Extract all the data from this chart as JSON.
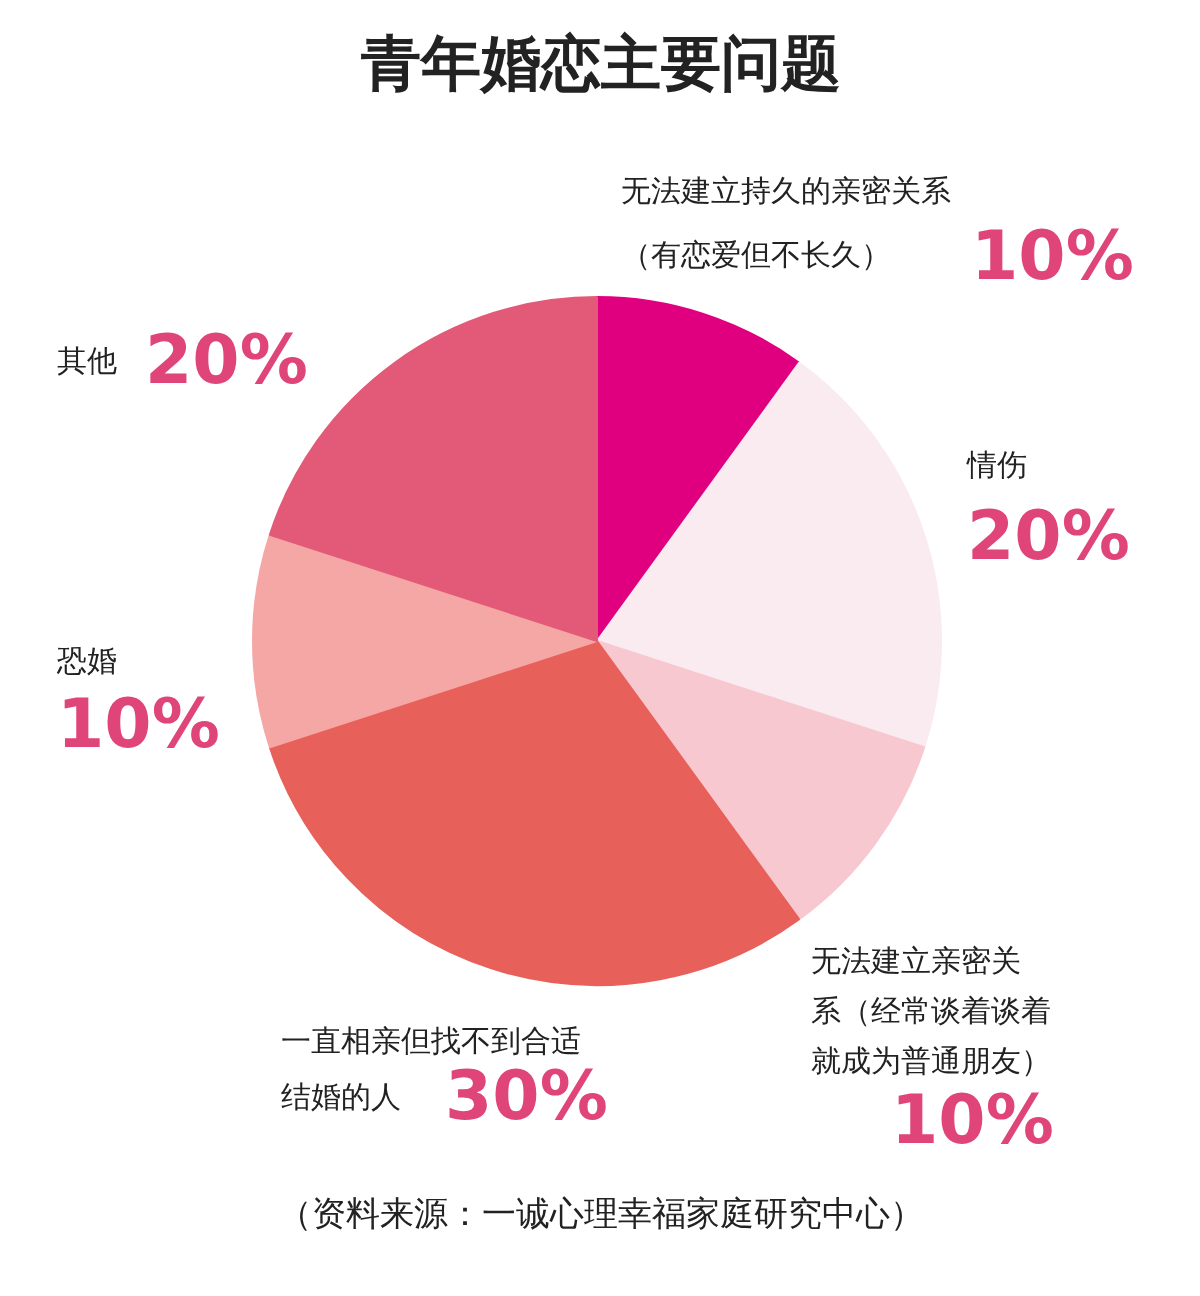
{
  "chart_data": {
    "type": "pie",
    "title": "青年婚恋主要问题",
    "categories": [
      "无法建立持久的亲密关系（有恋爱但不长久）",
      "情伤",
      "无法建立亲密关系（经常谈着谈着就成为普通朋友）",
      "一直相亲但找不到合适结婚的人",
      "恐婚",
      "其他"
    ],
    "values": [
      10,
      20,
      10,
      30,
      10,
      20
    ],
    "value_labels": [
      "10%",
      "20%",
      "10%",
      "30%",
      "10%",
      "20%"
    ],
    "colors": [
      "#e0007f",
      "#faebf1",
      "#f7c8d0",
      "#e8605a",
      "#f5a7a5",
      "#e35a78"
    ],
    "annotations": [
      "（资料来源：一诚心理幸福家庭研究中心）"
    ]
  }
}
